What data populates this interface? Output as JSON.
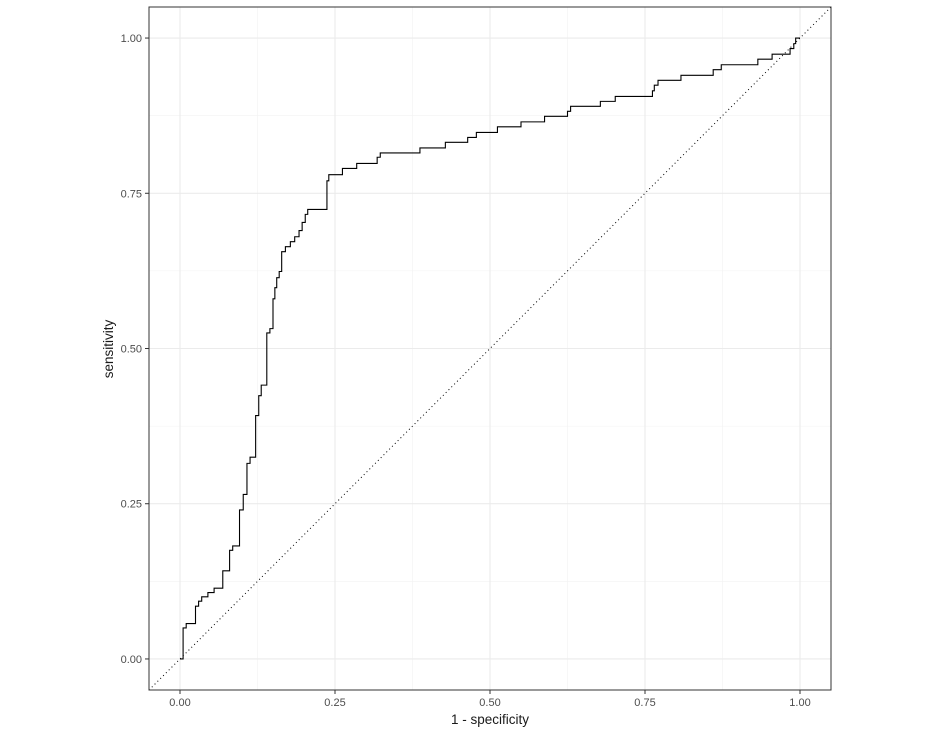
{
  "chart_data": {
    "type": "line",
    "title": "",
    "xlabel": "1 - specificity",
    "ylabel": "sensitivity",
    "xlim": [
      -0.05,
      1.05
    ],
    "ylim": [
      -0.05,
      1.05
    ],
    "x_ticks": [
      0,
      0.25,
      0.5,
      0.75,
      1
    ],
    "x_tick_labels": [
      "0.00",
      "0.25",
      "0.50",
      "0.75",
      "1.00"
    ],
    "y_ticks": [
      0,
      0.25,
      0.5,
      0.75,
      1
    ],
    "y_tick_labels": [
      "0.00",
      "0.25",
      "0.50",
      "0.75",
      "1.00"
    ],
    "grid": true,
    "theme": "bw",
    "reference_line": {
      "style": "dotted",
      "from": [
        0,
        0
      ],
      "to": [
        1,
        1
      ]
    },
    "series": [
      {
        "kind": "step",
        "color": "#000000",
        "points": [
          [
            0.0,
            0.0
          ],
          [
            0.005,
            0.0
          ],
          [
            0.005,
            0.05
          ],
          [
            0.01,
            0.05
          ],
          [
            0.01,
            0.057
          ],
          [
            0.025,
            0.057
          ],
          [
            0.025,
            0.085
          ],
          [
            0.03,
            0.085
          ],
          [
            0.03,
            0.093
          ],
          [
            0.035,
            0.093
          ],
          [
            0.035,
            0.1
          ],
          [
            0.045,
            0.1
          ],
          [
            0.045,
            0.107
          ],
          [
            0.055,
            0.107
          ],
          [
            0.055,
            0.114
          ],
          [
            0.069,
            0.114
          ],
          [
            0.069,
            0.142
          ],
          [
            0.08,
            0.142
          ],
          [
            0.08,
            0.175
          ],
          [
            0.085,
            0.175
          ],
          [
            0.085,
            0.182
          ],
          [
            0.096,
            0.182
          ],
          [
            0.096,
            0.24
          ],
          [
            0.102,
            0.24
          ],
          [
            0.102,
            0.265
          ],
          [
            0.108,
            0.265
          ],
          [
            0.108,
            0.315
          ],
          [
            0.113,
            0.315
          ],
          [
            0.113,
            0.325
          ],
          [
            0.122,
            0.325
          ],
          [
            0.122,
            0.392
          ],
          [
            0.127,
            0.392
          ],
          [
            0.127,
            0.424
          ],
          [
            0.131,
            0.424
          ],
          [
            0.131,
            0.441
          ],
          [
            0.14,
            0.441
          ],
          [
            0.14,
            0.525
          ],
          [
            0.145,
            0.525
          ],
          [
            0.145,
            0.532
          ],
          [
            0.15,
            0.532
          ],
          [
            0.15,
            0.58
          ],
          [
            0.153,
            0.58
          ],
          [
            0.153,
            0.598
          ],
          [
            0.156,
            0.598
          ],
          [
            0.156,
            0.614
          ],
          [
            0.16,
            0.614
          ],
          [
            0.16,
            0.624
          ],
          [
            0.164,
            0.624
          ],
          [
            0.164,
            0.656
          ],
          [
            0.17,
            0.656
          ],
          [
            0.17,
            0.664
          ],
          [
            0.178,
            0.664
          ],
          [
            0.178,
            0.672
          ],
          [
            0.185,
            0.672
          ],
          [
            0.185,
            0.68
          ],
          [
            0.192,
            0.68
          ],
          [
            0.192,
            0.69
          ],
          [
            0.197,
            0.69
          ],
          [
            0.197,
            0.703
          ],
          [
            0.202,
            0.703
          ],
          [
            0.202,
            0.716
          ],
          [
            0.206,
            0.716
          ],
          [
            0.206,
            0.724
          ],
          [
            0.237,
            0.724
          ],
          [
            0.237,
            0.77
          ],
          [
            0.24,
            0.77
          ],
          [
            0.24,
            0.78
          ],
          [
            0.262,
            0.78
          ],
          [
            0.262,
            0.79
          ],
          [
            0.285,
            0.79
          ],
          [
            0.285,
            0.798
          ],
          [
            0.318,
            0.798
          ],
          [
            0.318,
            0.808
          ],
          [
            0.323,
            0.808
          ],
          [
            0.323,
            0.815
          ],
          [
            0.387,
            0.815
          ],
          [
            0.387,
            0.823
          ],
          [
            0.428,
            0.823
          ],
          [
            0.428,
            0.832
          ],
          [
            0.464,
            0.832
          ],
          [
            0.464,
            0.84
          ],
          [
            0.478,
            0.84
          ],
          [
            0.478,
            0.848
          ],
          [
            0.512,
            0.848
          ],
          [
            0.512,
            0.857
          ],
          [
            0.55,
            0.857
          ],
          [
            0.55,
            0.865
          ],
          [
            0.588,
            0.865
          ],
          [
            0.588,
            0.874
          ],
          [
            0.625,
            0.874
          ],
          [
            0.625,
            0.882
          ],
          [
            0.63,
            0.882
          ],
          [
            0.63,
            0.89
          ],
          [
            0.678,
            0.89
          ],
          [
            0.678,
            0.898
          ],
          [
            0.702,
            0.898
          ],
          [
            0.702,
            0.906
          ],
          [
            0.762,
            0.906
          ],
          [
            0.762,
            0.915
          ],
          [
            0.765,
            0.915
          ],
          [
            0.765,
            0.924
          ],
          [
            0.771,
            0.924
          ],
          [
            0.771,
            0.932
          ],
          [
            0.808,
            0.932
          ],
          [
            0.808,
            0.94
          ],
          [
            0.86,
            0.94
          ],
          [
            0.86,
            0.949
          ],
          [
            0.873,
            0.949
          ],
          [
            0.873,
            0.957
          ],
          [
            0.932,
            0.957
          ],
          [
            0.932,
            0.966
          ],
          [
            0.955,
            0.966
          ],
          [
            0.955,
            0.974
          ],
          [
            0.984,
            0.974
          ],
          [
            0.984,
            0.983
          ],
          [
            0.99,
            0.983
          ],
          [
            0.99,
            0.991
          ],
          [
            0.993,
            0.991
          ],
          [
            0.993,
            1.0
          ],
          [
            1.0,
            1.0
          ]
        ]
      }
    ]
  }
}
